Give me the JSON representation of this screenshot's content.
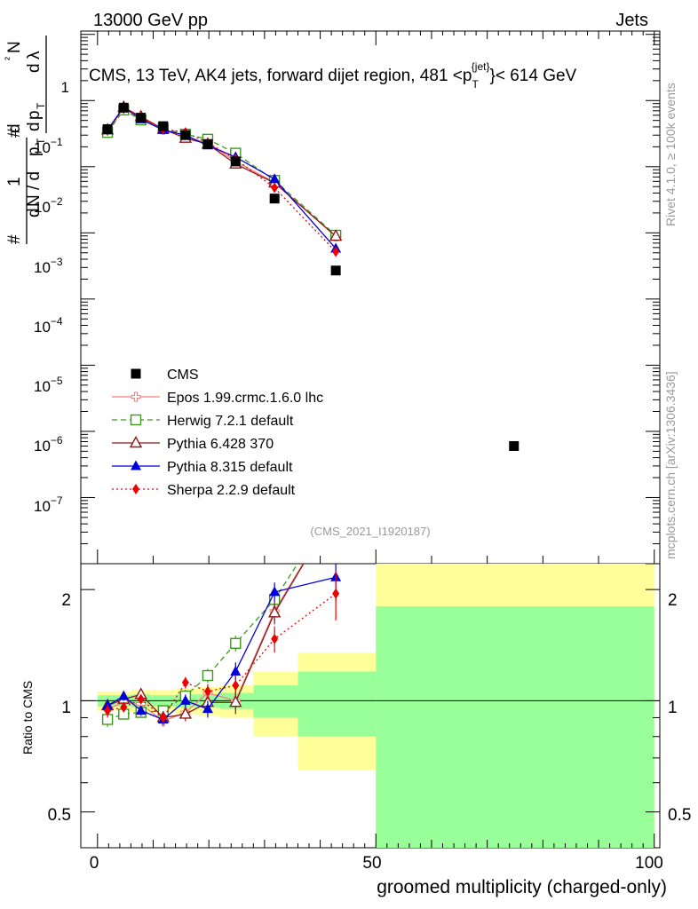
{
  "header": {
    "left": "13000 GeV pp",
    "right": "Jets",
    "plot_title": "CMS, 13 TeV, AK4 jets, forward dijet region, 481 <p",
    "title_sup": "{jet}",
    "title_sub": "T",
    "title_end": "}< 614 GeV"
  },
  "side_labels": {
    "rivet": "Rivet 4.1.0, ≥ 100k events",
    "mcplots": "mcplots.cern.ch [arXiv:1306.3436]"
  },
  "watermark": "(CMS_2021_I1920187)",
  "axes": {
    "ylabel_main_pieces": [
      "1",
      "#",
      "d",
      "N / d",
      "p",
      "T",
      "#",
      "d",
      "p",
      "T",
      "d",
      "²",
      "N",
      "d",
      "λ"
    ],
    "ylabel_ratio": "Ratio to CMS",
    "xlabel": "groomed multiplicity (charged-only)",
    "xticks": [
      "0",
      "50",
      "100"
    ],
    "main_yticks": [
      "1",
      "10",
      "−1",
      "10",
      "−2",
      "10",
      "−3",
      "10",
      "−4",
      "10",
      "−5",
      "10",
      "−6",
      "10",
      "−7"
    ],
    "ratio_yticks": [
      "0.5",
      "1",
      "2"
    ]
  },
  "legend": [
    {
      "label": "CMS",
      "color": "#000000",
      "marker": "square-filled",
      "dash": "none"
    },
    {
      "label": "Epos 1.99.crmc.1.6.0 lhc",
      "color": "#f08080",
      "marker": "cross-open",
      "dash": "solid"
    },
    {
      "label": "Herwig 7.2.1 default",
      "color": "#3b9a1c",
      "marker": "square-open",
      "dash": "dashed"
    },
    {
      "label": "Pythia 6.428 370",
      "color": "#8b1a1a",
      "marker": "triangle-open",
      "dash": "solid"
    },
    {
      "label": "Pythia 8.315 default",
      "color": "#0000dd",
      "marker": "triangle-filled",
      "dash": "solid"
    },
    {
      "label": "Sherpa 2.2.9 default",
      "color": "#ee0000",
      "marker": "diamond-filled",
      "dash": "dotted"
    }
  ],
  "chart_data": {
    "type": "scatter",
    "x_range": [
      -3,
      101
    ],
    "y_main_range_log10": [
      -8,
      0.05
    ],
    "y_ratio_range": [
      0.4,
      2.35
    ],
    "bins": [
      [
        0,
        3.5
      ],
      [
        3.5,
        6
      ],
      [
        6,
        9.5
      ],
      [
        9.5,
        14
      ],
      [
        14,
        18
      ],
      [
        18,
        22
      ],
      [
        22,
        28
      ],
      [
        28,
        36
      ],
      [
        36,
        50
      ],
      [
        50,
        100
      ]
    ],
    "cms": {
      "x": [
        1.8,
        4.7,
        7.8,
        11.8,
        15.8,
        19.8,
        24.8,
        31.8,
        42.8,
        74.8
      ],
      "y": [
        0.037,
        0.078,
        0.055,
        0.041,
        0.03,
        0.022,
        0.012,
        0.0033,
        0.00027,
        6e-07
      ]
    },
    "ratio_band_stat": [
      0.035,
      0.035,
      0.04,
      0.035,
      0.04,
      0.04,
      0.05,
      0.1,
      0.2,
      0.8
    ],
    "ratio_band_total": [
      0.06,
      0.06,
      0.07,
      0.07,
      0.08,
      0.09,
      0.1,
      0.2,
      0.35,
      1.5
    ],
    "series": [
      {
        "name": "Epos 1.99.crmc.1.6.0 lhc",
        "x": [
          1.8,
          4.7,
          7.8,
          11.8,
          15.8,
          19.8,
          24.8,
          31.8,
          42.8
        ],
        "y": [
          0.035,
          0.077,
          0.054,
          0.036,
          0.028,
          0.023,
          0.012,
          0.0058,
          0.00088
        ],
        "ratio": [
          0.95,
          0.99,
          0.98,
          0.88,
          0.93,
          1.05,
          1.0,
          1.75,
          3.3
        ],
        "ratio_err": [
          0.04,
          0.03,
          0.03,
          0.03,
          0.04,
          0.05,
          0.07,
          0.12,
          0.3
        ]
      },
      {
        "name": "Herwig 7.2.1 default",
        "x": [
          1.8,
          4.7,
          7.8,
          11.8,
          15.8,
          19.8,
          24.8,
          31.8,
          42.8
        ],
        "y": [
          0.033,
          0.072,
          0.051,
          0.038,
          0.031,
          0.026,
          0.016,
          0.0062,
          0.00092
        ],
        "ratio": [
          0.89,
          0.92,
          0.93,
          0.94,
          1.03,
          1.17,
          1.43,
          1.88,
          3.4
        ],
        "ratio_err": [
          0.04,
          0.03,
          0.03,
          0.03,
          0.04,
          0.05,
          0.07,
          0.12,
          0.3
        ]
      },
      {
        "name": "Pythia 6.428 370",
        "x": [
          1.8,
          4.7,
          7.8,
          11.8,
          15.8,
          19.8,
          24.8,
          31.8,
          42.8
        ],
        "y": [
          0.036,
          0.079,
          0.057,
          0.037,
          0.027,
          0.022,
          0.011,
          0.0057,
          0.00089
        ],
        "ratio": [
          0.97,
          1.01,
          1.04,
          0.9,
          0.92,
          0.99,
          0.99,
          1.73,
          3.3
        ],
        "ratio_err": [
          0.04,
          0.03,
          0.03,
          0.03,
          0.04,
          0.05,
          0.07,
          0.12,
          0.3
        ]
      },
      {
        "name": "Pythia 8.315 default",
        "x": [
          1.8,
          4.7,
          7.8,
          11.8,
          15.8,
          19.8,
          24.8,
          31.8,
          42.8
        ],
        "y": [
          0.036,
          0.08,
          0.052,
          0.036,
          0.03,
          0.021,
          0.014,
          0.0065,
          0.00058
        ],
        "ratio": [
          0.97,
          1.03,
          0.94,
          0.89,
          1.0,
          0.95,
          1.2,
          1.97,
          2.16
        ],
        "ratio_err": [
          0.04,
          0.03,
          0.03,
          0.03,
          0.04,
          0.05,
          0.07,
          0.12,
          0.3
        ]
      },
      {
        "name": "Sherpa 2.2.9 default",
        "x": [
          1.8,
          4.7,
          7.8,
          11.8,
          15.8,
          19.8,
          24.8,
          31.8,
          42.8
        ],
        "y": [
          0.035,
          0.075,
          0.055,
          0.037,
          0.033,
          0.023,
          0.013,
          0.0048,
          0.00052
        ],
        "ratio": [
          0.94,
          0.96,
          1.01,
          0.9,
          1.12,
          1.06,
          1.1,
          1.47,
          1.95
        ],
        "ratio_err": [
          0.04,
          0.03,
          0.03,
          0.03,
          0.04,
          0.05,
          0.07,
          0.12,
          0.3
        ]
      }
    ]
  }
}
